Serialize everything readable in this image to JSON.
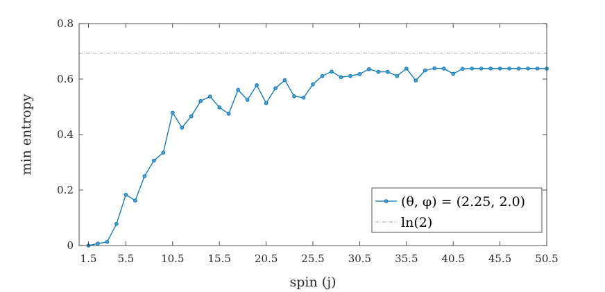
{
  "chart_data": {
    "type": "line",
    "xlabel": "spin (j)",
    "ylabel": "min entropy",
    "xlim": [
      0.5,
      50.5
    ],
    "ylim": [
      0,
      0.8
    ],
    "xticks": [
      1.5,
      5.5,
      10.5,
      15.5,
      20.5,
      25.5,
      30.5,
      35.5,
      40.5,
      45.5,
      50.5
    ],
    "xtick_labels": [
      "1.5",
      "5.5",
      "10.5",
      "15.5",
      "20.5",
      "25.5",
      "30.5",
      "35.5",
      "40.5",
      "45.5",
      "50.5"
    ],
    "yticks": [
      0,
      0.2,
      0.4,
      0.6,
      0.8
    ],
    "ytick_labels": [
      "0",
      "0.2",
      "0.4",
      "0.6",
      "0.8"
    ],
    "grid": false,
    "legend_position": "bottom-right",
    "series": [
      {
        "name": "(θ, φ) = (2.25, 2.0)",
        "color": "#0072BD",
        "marker": "circle",
        "x": [
          1.5,
          2.5,
          3.5,
          4.5,
          5.5,
          6.5,
          7.5,
          8.5,
          9.5,
          10.5,
          11.5,
          12.5,
          13.5,
          14.5,
          15.5,
          16.5,
          17.5,
          18.5,
          19.5,
          20.5,
          21.5,
          22.5,
          23.5,
          24.5,
          25.5,
          26.5,
          27.5,
          28.5,
          29.5,
          30.5,
          31.5,
          32.5,
          33.5,
          34.5,
          35.5,
          36.5,
          37.5,
          38.5,
          39.5,
          40.5,
          41.5,
          42.5,
          43.5,
          44.5,
          45.5,
          46.5,
          47.5,
          48.5,
          49.5,
          50.5
        ],
        "y": [
          0.0,
          0.007,
          0.013,
          0.078,
          0.183,
          0.162,
          0.25,
          0.306,
          0.335,
          0.479,
          0.425,
          0.466,
          0.521,
          0.537,
          0.498,
          0.475,
          0.561,
          0.525,
          0.578,
          0.513,
          0.567,
          0.596,
          0.538,
          0.533,
          0.581,
          0.611,
          0.627,
          0.607,
          0.611,
          0.618,
          0.636,
          0.626,
          0.626,
          0.611,
          0.638,
          0.595,
          0.631,
          0.639,
          0.638,
          0.619,
          0.637,
          0.638,
          0.638,
          0.638,
          0.638,
          0.638,
          0.638,
          0.638,
          0.638,
          0.638
        ]
      },
      {
        "name": "ln(2)",
        "color": "#a0a0a0",
        "dash": "dash-dot",
        "x": [
          0.5,
          50.5
        ],
        "y": [
          0.6931,
          0.6931
        ]
      }
    ]
  }
}
